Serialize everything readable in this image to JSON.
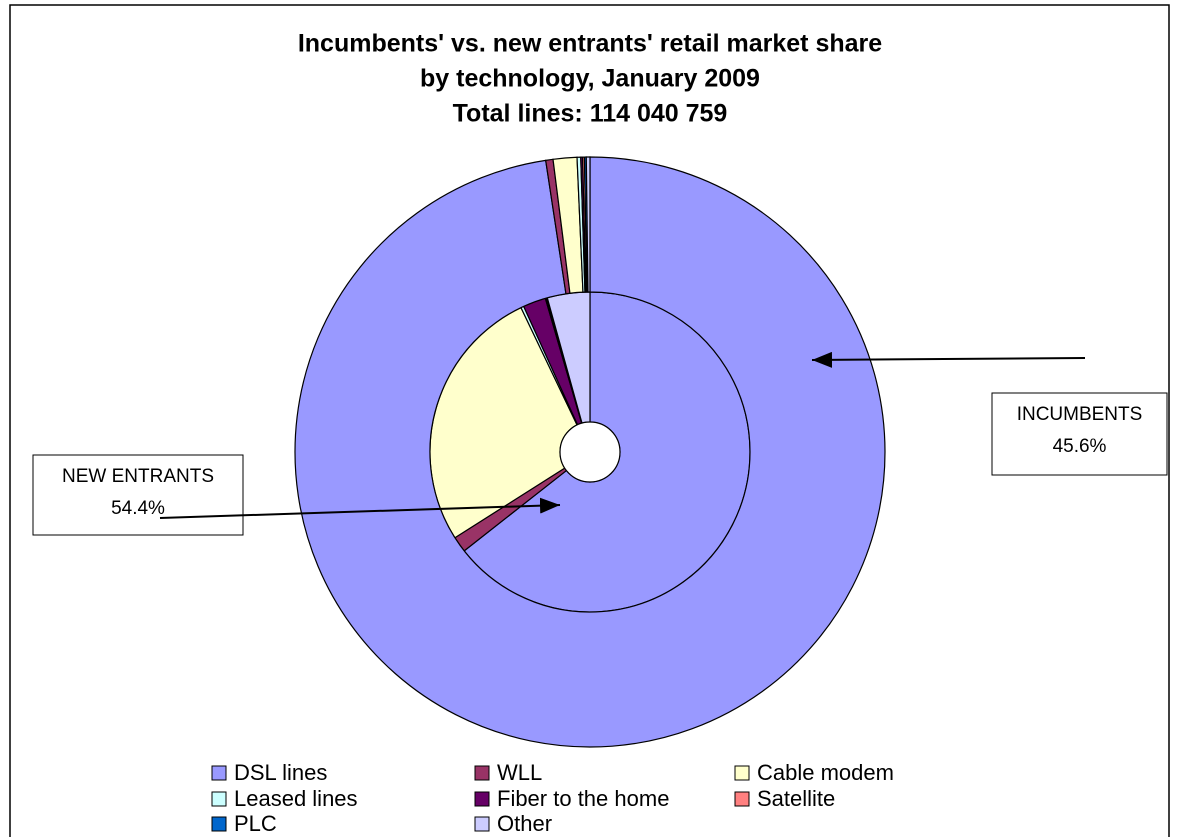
{
  "chart_data": {
    "type": "doughnut",
    "title": [
      "Incumbents' vs. new entrants' retail market share",
      "by technology, January 2009",
      "Total lines: 114 040 759"
    ],
    "categories": [
      "DSL lines",
      "WLL",
      "Cable modem",
      "Leased lines",
      "Fiber to the home",
      "Satellite",
      "PLC",
      "Other"
    ],
    "colors": [
      "#9999ff",
      "#993366",
      "#ffffcc",
      "#ccffff",
      "#660066",
      "#ff8080",
      "#0066cc",
      "#ccccff"
    ],
    "series": [
      {
        "values": [
          64.4,
          1.6,
          26.9,
          0.3,
          2.3,
          0.1,
          0.1,
          4.3
        ]
      },
      {
        "values": [
          97.6,
          0.4,
          1.3,
          0.2,
          0.1,
          0.1,
          0.1,
          0.2
        ]
      }
    ],
    "annotations": [
      {
        "text": "NEW ENTRANTS",
        "value": 54.4,
        "label": "54.4%"
      },
      {
        "text": "INCUMBENTS",
        "value": 45.6,
        "label": "45.6%"
      }
    ]
  }
}
